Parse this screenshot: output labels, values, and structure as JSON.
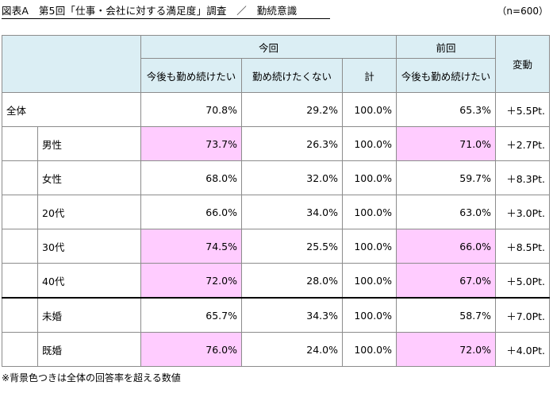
{
  "title": "図表A　第5回「仕事・会社に対する満足度」調査　／　勤続意識",
  "sample": "（n=600）",
  "headers": {
    "current": "今回",
    "previous": "前回",
    "change": "変動",
    "col_stay": "今後も勤め続けたい",
    "col_leave": "勤め続けたくない",
    "col_total": "計",
    "col_prev_stay": "今後も勤め続けたい"
  },
  "rows": [
    {
      "label": "全体",
      "stay": "70.8%",
      "leave": "29.2%",
      "total": "100.0%",
      "prev": "65.3%",
      "change": "＋5.5Pt."
    },
    {
      "label": "男性",
      "stay": "73.7%",
      "leave": "26.3%",
      "total": "100.0%",
      "prev": "71.0%",
      "change": "＋2.7Pt."
    },
    {
      "label": "女性",
      "stay": "68.0%",
      "leave": "32.0%",
      "total": "100.0%",
      "prev": "59.7%",
      "change": "＋8.3Pt."
    },
    {
      "label": "20代",
      "stay": "66.0%",
      "leave": "34.0%",
      "total": "100.0%",
      "prev": "63.0%",
      "change": "＋3.0Pt."
    },
    {
      "label": "30代",
      "stay": "74.5%",
      "leave": "25.5%",
      "total": "100.0%",
      "prev": "66.0%",
      "change": "＋8.5Pt."
    },
    {
      "label": "40代",
      "stay": "72.0%",
      "leave": "28.0%",
      "total": "100.0%",
      "prev": "67.0%",
      "change": "＋5.0Pt."
    },
    {
      "label": "未婚",
      "stay": "65.7%",
      "leave": "34.3%",
      "total": "100.0%",
      "prev": "58.7%",
      "change": "＋7.0Pt."
    },
    {
      "label": "既婚",
      "stay": "76.0%",
      "leave": "24.0%",
      "total": "100.0%",
      "prev": "72.0%",
      "change": "＋4.0Pt."
    }
  ],
  "note": "※背景色つきは全体の回答率を超える数値",
  "colors": {
    "header_bg": "#dbeef4",
    "highlight": "#ffccff",
    "border": "#8c8c8c"
  }
}
